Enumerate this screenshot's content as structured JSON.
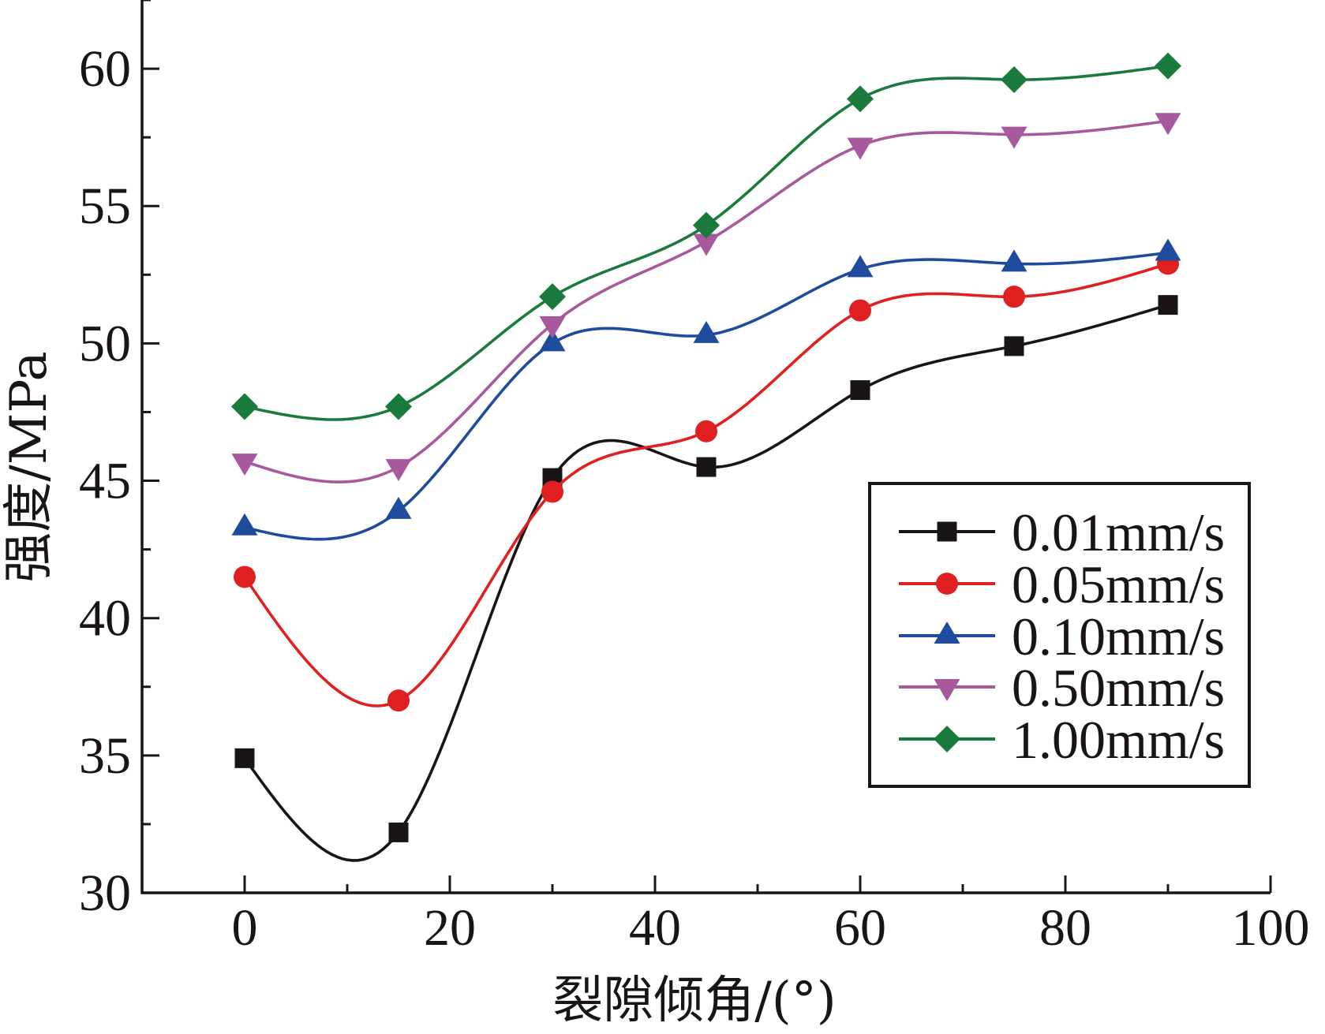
{
  "chart_data": {
    "type": "line",
    "title": "",
    "xlabel": "裂隙倾角/(°)",
    "ylabel": "强度/MPa",
    "xlim": [
      -10,
      100
    ],
    "ylim": [
      30,
      62.5
    ],
    "xticks": [
      0,
      20,
      40,
      60,
      80,
      100
    ],
    "xtick_labels": [
      "0",
      "20",
      "40",
      "60",
      "80",
      "100"
    ],
    "x_minor_step": 10,
    "yticks": [
      30,
      35,
      40,
      45,
      50,
      55,
      60
    ],
    "ytick_labels": [
      "30",
      "35",
      "40",
      "45",
      "50",
      "55",
      "60"
    ],
    "y_minor_step": 2.5,
    "grid": false,
    "smooth": true,
    "legend_position": "center-right",
    "x": [
      0,
      15,
      30,
      45,
      60,
      75,
      90
    ],
    "series": [
      {
        "name": "0.01mm/s",
        "color": "#1a1414",
        "marker": "square",
        "values": [
          34.9,
          32.2,
          45.1,
          45.5,
          48.3,
          49.9,
          51.4
        ]
      },
      {
        "name": "0.05mm/s",
        "color": "#e02020",
        "marker": "circle",
        "values": [
          41.5,
          37.0,
          44.6,
          46.8,
          51.2,
          51.7,
          52.9
        ]
      },
      {
        "name": "0.10mm/s",
        "color": "#1f4b9c",
        "marker": "triangle-up",
        "values": [
          43.3,
          43.9,
          50.0,
          50.3,
          52.7,
          52.9,
          53.3
        ]
      },
      {
        "name": "0.50mm/s",
        "color": "#a8589d",
        "marker": "triangle-down",
        "values": [
          45.7,
          45.5,
          50.7,
          53.7,
          57.2,
          57.6,
          58.1
        ]
      },
      {
        "name": "1.00mm/s",
        "color": "#1a7a3c",
        "marker": "diamond",
        "values": [
          47.7,
          47.7,
          51.7,
          54.3,
          58.9,
          59.6,
          60.1
        ]
      }
    ]
  }
}
